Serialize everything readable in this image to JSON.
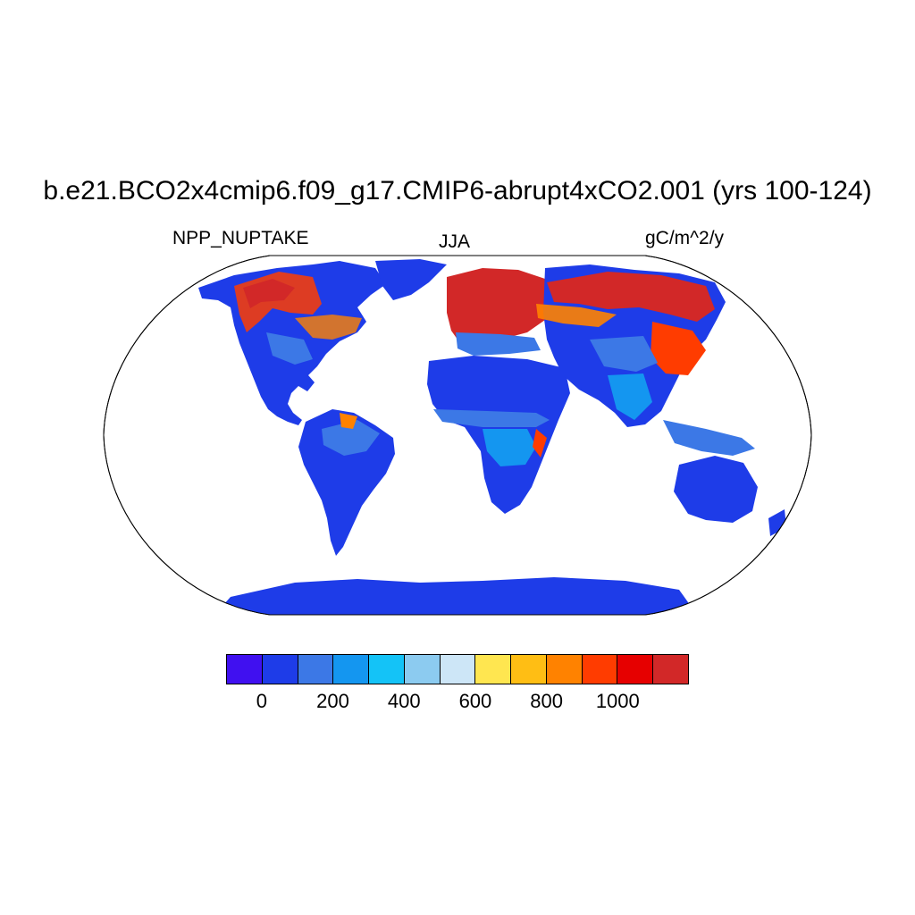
{
  "title": "b.e21.BCO2x4cmip6.f09_g17.CMIP6-abrupt4xCO2.001 (yrs 100-124)",
  "left_subtitle": "NPP_NUPTAKE",
  "center_subtitle": "JJA",
  "right_subtitle": "gC/m^2/y",
  "projection": "Robinson",
  "colorbar": {
    "colors": [
      "#4010f0",
      "#1e3ce8",
      "#3c78e6",
      "#1496f0",
      "#14c3f7",
      "#8ccbf0",
      "#cde6f7",
      "#ffe650",
      "#ffbe14",
      "#ff8200",
      "#ff3c00",
      "#e60000",
      "#d22828"
    ],
    "labels": [
      "0",
      "200",
      "400",
      "600",
      "800",
      "1000"
    ]
  }
}
